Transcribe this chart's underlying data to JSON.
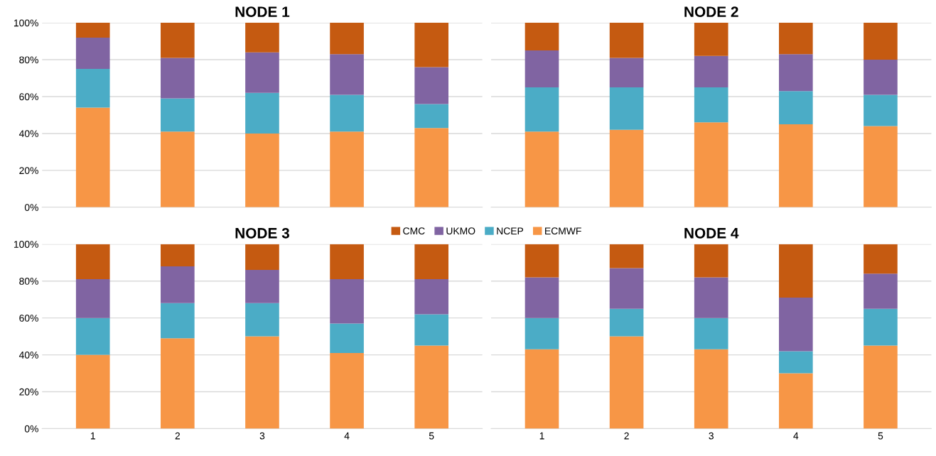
{
  "chart_data": [
    {
      "type": "bar",
      "stacked": true,
      "title": "NODE 1",
      "categories": [
        "1",
        "2",
        "3",
        "4",
        "5"
      ],
      "ylim": [
        0,
        100
      ],
      "yticks": [
        {
          "value": 0,
          "label": "0%"
        },
        {
          "value": 20,
          "label": "20%"
        },
        {
          "value": 40,
          "label": "40%"
        },
        {
          "value": 60,
          "label": "60%"
        },
        {
          "value": 80,
          "label": "80%"
        },
        {
          "value": 100,
          "label": "100%"
        }
      ],
      "grid": "y",
      "tick_labels": "y",
      "legend": "bottom",
      "series": [
        {
          "name": "ECMWF",
          "color": "#f79646",
          "values": [
            54,
            41,
            40,
            41,
            43
          ]
        },
        {
          "name": "NCEP",
          "color": "#4bacc6",
          "values": [
            21,
            18,
            22,
            20,
            13
          ]
        },
        {
          "name": "UKMO",
          "color": "#8064a2",
          "values": [
            17,
            22,
            22,
            22,
            20
          ]
        },
        {
          "name": "CMC",
          "color": "#c55a11",
          "values": [
            8,
            19,
            16,
            17,
            24
          ]
        }
      ]
    },
    {
      "type": "bar",
      "stacked": true,
      "title": "NODE 2",
      "categories": [
        "1",
        "2",
        "3",
        "4",
        "5"
      ],
      "ylim": [
        0,
        100
      ],
      "yticks": [
        0,
        20,
        40,
        60,
        80,
        100
      ],
      "grid": "y",
      "tick_labels": false,
      "series": [
        {
          "color": "#f79646",
          "values": [
            41,
            42,
            46,
            45,
            44
          ]
        },
        {
          "color": "#4bacc6",
          "values": [
            24,
            23,
            19,
            18,
            17
          ]
        },
        {
          "color": "#8064a2",
          "values": [
            20,
            16,
            17,
            20,
            19
          ]
        },
        {
          "color": "#c55a11",
          "values": [
            15,
            19,
            18,
            17,
            20
          ]
        }
      ]
    },
    {
      "type": "bar",
      "stacked": true,
      "title": "NODE 3",
      "categories": [
        "1",
        "2",
        "3",
        "4",
        "5"
      ],
      "ylim": [
        0,
        100
      ],
      "yticks": [
        {
          "value": 0,
          "label": "0%"
        },
        {
          "value": 20,
          "label": "20%"
        },
        {
          "value": 40,
          "label": "40%"
        },
        {
          "value": 60,
          "label": "60%"
        },
        {
          "value": 80,
          "label": "80%"
        },
        {
          "value": 100,
          "label": "100%"
        }
      ],
      "grid": "y",
      "series": [
        {
          "color": "#f79646",
          "values": [
            40,
            49,
            50,
            41,
            45
          ]
        },
        {
          "color": "#4bacc6",
          "values": [
            20,
            19,
            18,
            16,
            17
          ]
        },
        {
          "color": "#8064a2",
          "values": [
            21,
            20,
            18,
            24,
            19
          ]
        },
        {
          "color": "#c55a11",
          "values": [
            19,
            12,
            14,
            19,
            19
          ]
        }
      ]
    },
    {
      "type": "bar",
      "stacked": true,
      "title": "NODE 4",
      "categories": [
        "1",
        "2",
        "3",
        "4",
        "5"
      ],
      "ylim": [
        0,
        100
      ],
      "yticks": [
        0,
        20,
        40,
        60,
        80,
        100
      ],
      "grid": "y",
      "tick_labels": "x",
      "series": [
        {
          "color": "#f79646",
          "values": [
            43,
            50,
            43,
            30,
            45
          ]
        },
        {
          "color": "#4bacc6",
          "values": [
            17,
            15,
            17,
            12,
            20
          ]
        },
        {
          "color": "#8064a2",
          "values": [
            22,
            22,
            22,
            29,
            19
          ]
        },
        {
          "color": "#c55a11",
          "values": [
            18,
            13,
            18,
            29,
            16
          ]
        }
      ]
    }
  ]
}
